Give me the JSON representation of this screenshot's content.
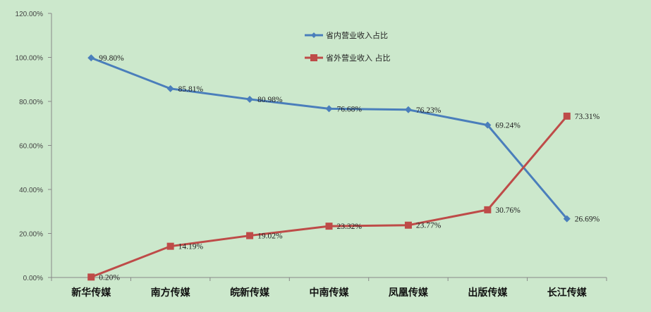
{
  "chart_data": {
    "type": "line",
    "categories": [
      "新华传媒",
      "南方传媒",
      "皖新传媒",
      "中南传媒",
      "凤凰传媒",
      "出版传媒",
      "长江传媒"
    ],
    "ylim": [
      0,
      120
    ],
    "yticks": [
      "0.00%",
      "20.00%",
      "40.00%",
      "60.00%",
      "80.00%",
      "100.00%",
      "120.00%"
    ],
    "grid": false,
    "legend_position": "top-center",
    "series": [
      {
        "name": "省内营业收入占比",
        "values": [
          99.8,
          85.81,
          80.98,
          76.68,
          76.23,
          69.24,
          26.69
        ],
        "labels": [
          "99.80%",
          "85.81%",
          "80.98%",
          "76.68%",
          "76.23%",
          "69.24%",
          "26.69%"
        ],
        "color": "#4a7ebb",
        "marker": "diamond"
      },
      {
        "name": "省外营业收入 占比",
        "values": [
          0.2,
          14.19,
          19.02,
          23.32,
          23.77,
          30.76,
          73.31
        ],
        "labels": [
          "0.20%",
          "14.19%",
          "19.02%",
          "23.32%",
          "23.77%",
          "30.76%",
          "73.31%"
        ],
        "color": "#be4b48",
        "marker": "square"
      }
    ]
  }
}
